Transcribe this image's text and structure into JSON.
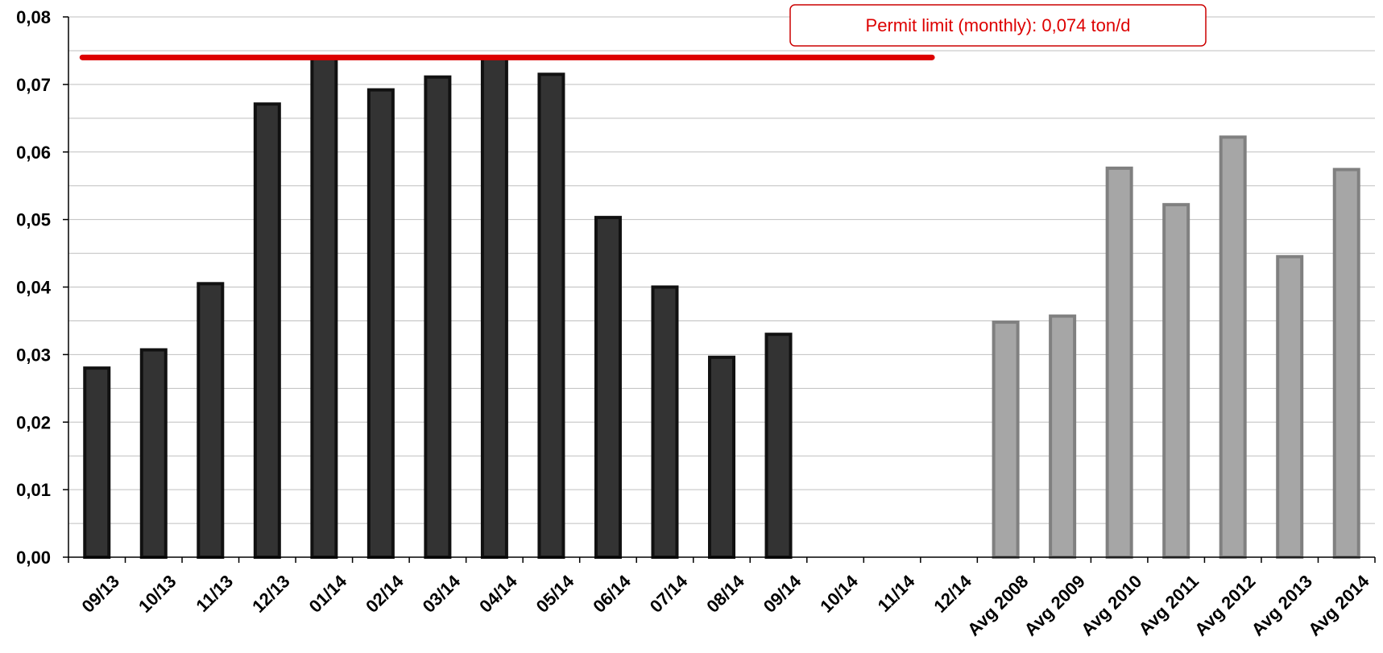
{
  "chart_data": {
    "type": "bar",
    "title": "",
    "xlabel": "",
    "ylabel": "",
    "categories": [
      "09/13",
      "10/13",
      "11/13",
      "12/13",
      "01/14",
      "02/14",
      "03/14",
      "04/14",
      "05/14",
      "06/14",
      "07/14",
      "08/14",
      "09/14",
      "10/14",
      "11/14",
      "12/14",
      "Avg 2008",
      "Avg 2009",
      "Avg 2010",
      "Avg 2011",
      "Avg 2012",
      "Avg 2013",
      "Avg 2014"
    ],
    "values": [
      0.028,
      0.0307,
      0.0405,
      0.0671,
      0.074,
      0.0692,
      0.0711,
      0.074,
      0.0715,
      0.0503,
      0.04,
      0.0296,
      0.033,
      null,
      null,
      null,
      0.0348,
      0.0357,
      0.0576,
      0.0522,
      0.0622,
      0.0445,
      0.0574
    ],
    "bar_styles": [
      "monthly",
      "monthly",
      "monthly",
      "monthly",
      "monthly",
      "monthly",
      "monthly",
      "monthly",
      "monthly",
      "monthly",
      "monthly",
      "monthly",
      "monthly",
      "monthly",
      "monthly",
      "monthly",
      "average",
      "average",
      "average",
      "average",
      "average",
      "average",
      "average"
    ],
    "colors": {
      "monthly_fill": "#333333",
      "monthly_stroke": "#111111",
      "average_fill": "#a6a6a6",
      "average_stroke": "#808080",
      "limit_line": "#dd0000",
      "annotation_text": "#dd0000",
      "annotation_border": "#cc0000",
      "gridline": "#bfbfbf",
      "axis": "#000000"
    },
    "ylim": [
      0,
      0.08
    ],
    "yticks": [
      "0,00",
      "0,01",
      "0,02",
      "0,03",
      "0,04",
      "0,05",
      "0,06",
      "0,07",
      "0,08"
    ],
    "ytick_values": [
      0,
      0.01,
      0.02,
      0.03,
      0.04,
      0.05,
      0.06,
      0.07,
      0.08
    ],
    "minor_gridline_step": 0.005,
    "grid": true,
    "legend": "none",
    "permit_limit": {
      "value": 0.074,
      "from_category": "09/13",
      "to_category": "12/14"
    },
    "annotations": [
      {
        "text": "Permit limit (monthly): 0,074 ton/d"
      }
    ]
  }
}
